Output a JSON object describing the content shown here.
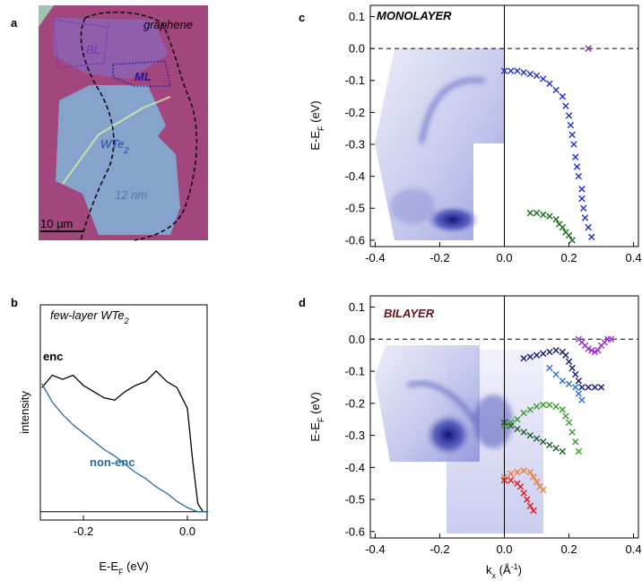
{
  "image_panel": {
    "panel_label": "a",
    "labels": {
      "graphene": "graphene",
      "bl": "BL",
      "ml": "ML",
      "wte2": [
        {
          "text": "WTe"
        },
        {
          "text": "2",
          "shift": "sub"
        }
      ],
      "thickness": "12 nm",
      "scale_bar": "10 µm"
    }
  },
  "chart_data": [
    {
      "type": "line",
      "panel_label": "b",
      "title": [
        {
          "text": "few-layer WTe"
        },
        {
          "text": "2",
          "shift": "sub"
        }
      ],
      "x_label": [
        {
          "text": "E-E"
        },
        {
          "text": "F",
          "shift": "sub"
        },
        {
          "text": " (eV)"
        }
      ],
      "y_label": "intensity",
      "x": [
        -0.28,
        -0.26,
        -0.24,
        -0.22,
        -0.2,
        -0.18,
        -0.16,
        -0.14,
        -0.12,
        -0.1,
        -0.08,
        -0.06,
        -0.04,
        -0.02,
        0,
        0.01,
        0.02,
        0.03,
        0.04
      ],
      "series": [
        {
          "name": "enc",
          "color": "#000000",
          "values": [
            0.6,
            0.66,
            0.64,
            0.66,
            0.61,
            0.58,
            0.55,
            0.54,
            0.58,
            0.61,
            0.63,
            0.68,
            0.63,
            0.6,
            0.5,
            0.25,
            0.04,
            0,
            0
          ]
        },
        {
          "name": "non-enc",
          "color": "#1f6fa0",
          "values": [
            0.62,
            0.53,
            0.47,
            0.42,
            0.38,
            0.34,
            0.3,
            0.27,
            0.23,
            0.19,
            0.16,
            0.12,
            0.09,
            0.05,
            0.02,
            0.01,
            0,
            0,
            0
          ]
        }
      ],
      "xlim": [
        -0.283,
        0.038
      ],
      "ylim": [
        -0.04,
        1
      ],
      "xticks": [
        -0.2,
        {
          "value": 0,
          "label": "0.0"
        }
      ],
      "y_zero_line": "solid"
    },
    {
      "type": "scatter",
      "panel_label": "c",
      "title": "MONOLAYER",
      "title_color": "#000000",
      "y_label": [
        {
          "text": "E-E"
        },
        {
          "text": "F",
          "shift": "sub"
        },
        {
          "text": " (eV)"
        }
      ],
      "series": [
        {
          "color": "#1a2fd6",
          "x": [
            0,
            0.02,
            0.04,
            0.06,
            0.08,
            0.1,
            0.12,
            0.14,
            0.16,
            0.18,
            0.19,
            0.2,
            0.205,
            0.21,
            0.215,
            0.22,
            0.225,
            0.23,
            0.24,
            0.24,
            0.245,
            0.25,
            0.26,
            0.27
          ],
          "values": [
            -0.07,
            -0.07,
            -0.07,
            -0.075,
            -0.08,
            -0.085,
            -0.095,
            -0.11,
            -0.13,
            -0.15,
            -0.18,
            -0.21,
            -0.24,
            -0.27,
            -0.3,
            -0.34,
            -0.37,
            -0.4,
            -0.44,
            -0.47,
            -0.5,
            -0.53,
            -0.56,
            -0.59
          ]
        },
        {
          "color": "#8a1fb5",
          "x": [
            0.26
          ],
          "values": [
            0
          ]
        },
        {
          "color": "#1c6b1c",
          "x": [
            0.08,
            0.1,
            0.12,
            0.14,
            0.16,
            0.17,
            0.18,
            0.19,
            0.2,
            0.21
          ],
          "values": [
            -0.515,
            -0.515,
            -0.52,
            -0.525,
            -0.535,
            -0.55,
            -0.56,
            -0.575,
            -0.585,
            -0.6
          ]
        }
      ],
      "xlim": [
        -0.415,
        0.415
      ],
      "ylim": [
        -0.62,
        0.135
      ],
      "xticks": [
        -0.4,
        -0.2,
        {
          "value": 0,
          "label": "0.0"
        },
        0.2,
        0.4
      ],
      "yticks": [
        0.1,
        {
          "value": 0,
          "label": "0.0"
        },
        -0.1,
        -0.2,
        -0.3,
        -0.4,
        -0.5,
        -0.6
      ],
      "y_zero_line": "dashed",
      "x_zero_line": true
    },
    {
      "type": "scatter",
      "panel_label": "d",
      "title": "BILAYER",
      "title_color": "#6b1010",
      "x_label": [
        {
          "text": "k"
        },
        {
          "text": "x",
          "shift": "sub"
        },
        {
          "text": " (Å"
        },
        {
          "text": "-1",
          "shift": "super"
        },
        {
          "text": ")"
        }
      ],
      "y_label": [
        {
          "text": "E-E"
        },
        {
          "text": "F",
          "shift": "sub"
        },
        {
          "text": " (eV)"
        }
      ],
      "series": [
        {
          "color": "#9b2fd0",
          "x": [
            0.23,
            0.24,
            0.25,
            0.26,
            0.27,
            0.28,
            0.29,
            0.3,
            0.31,
            0.32,
            0.33
          ],
          "values": [
            0,
            -0.01,
            -0.02,
            -0.03,
            -0.035,
            -0.04,
            -0.035,
            -0.02,
            -0.01,
            0,
            0
          ]
        },
        {
          "color": "#141a7a",
          "x": [
            0.06,
            0.08,
            0.1,
            0.12,
            0.14,
            0.16,
            0.18,
            0.19,
            0.2,
            0.21,
            0.22,
            0.23,
            0.24,
            0.26,
            0.28,
            0.3
          ],
          "values": [
            -0.06,
            -0.055,
            -0.05,
            -0.045,
            -0.04,
            -0.035,
            -0.04,
            -0.05,
            -0.07,
            -0.09,
            -0.11,
            -0.13,
            -0.15,
            -0.15,
            -0.15,
            -0.15
          ]
        },
        {
          "color": "#2a6ee0",
          "x": [
            0.14,
            0.16,
            0.18,
            0.2,
            0.22,
            0.23,
            0.24
          ],
          "values": [
            -0.09,
            -0.11,
            -0.13,
            -0.14,
            -0.15,
            -0.17,
            -0.19
          ]
        },
        {
          "color": "#3a9a2a",
          "x": [
            0,
            0.02,
            0.04,
            0.06,
            0.08,
            0.1,
            0.12,
            0.14,
            0.16,
            0.18,
            0.19,
            0.2,
            0.21,
            0.22,
            0.23
          ],
          "values": [
            -0.27,
            -0.26,
            -0.25,
            -0.23,
            -0.22,
            -0.21,
            -0.205,
            -0.205,
            -0.21,
            -0.22,
            -0.24,
            -0.26,
            -0.29,
            -0.32,
            -0.35
          ]
        },
        {
          "color": "#1f5a2a",
          "x": [
            0,
            0.02,
            0.04,
            0.06,
            0.08,
            0.1,
            0.12,
            0.14,
            0.16,
            0.18
          ],
          "values": [
            -0.26,
            -0.27,
            -0.28,
            -0.29,
            -0.3,
            -0.31,
            -0.32,
            -0.33,
            -0.34,
            -0.35
          ]
        },
        {
          "color": "#f07a30",
          "x": [
            0,
            0.02,
            0.04,
            0.06,
            0.08,
            0.09,
            0.1,
            0.11,
            0.12
          ],
          "values": [
            -0.43,
            -0.42,
            -0.415,
            -0.41,
            -0.415,
            -0.43,
            -0.445,
            -0.46,
            -0.47
          ]
        },
        {
          "color": "#e01818",
          "x": [
            0,
            0.02,
            0.04,
            0.05,
            0.06,
            0.07,
            0.08,
            0.09
          ],
          "values": [
            -0.44,
            -0.44,
            -0.45,
            -0.46,
            -0.48,
            -0.5,
            -0.52,
            -0.535
          ]
        }
      ],
      "xlim": [
        -0.415,
        0.415
      ],
      "ylim": [
        -0.62,
        0.135
      ],
      "xticks": [
        -0.4,
        -0.2,
        {
          "value": 0,
          "label": "0.0"
        },
        0.2,
        0.4
      ],
      "yticks": [
        0.1,
        {
          "value": 0,
          "label": "0.0"
        },
        -0.1,
        -0.2,
        -0.3,
        -0.4,
        -0.5,
        -0.6
      ],
      "y_zero_line": "dashed",
      "x_zero_line": true
    }
  ]
}
